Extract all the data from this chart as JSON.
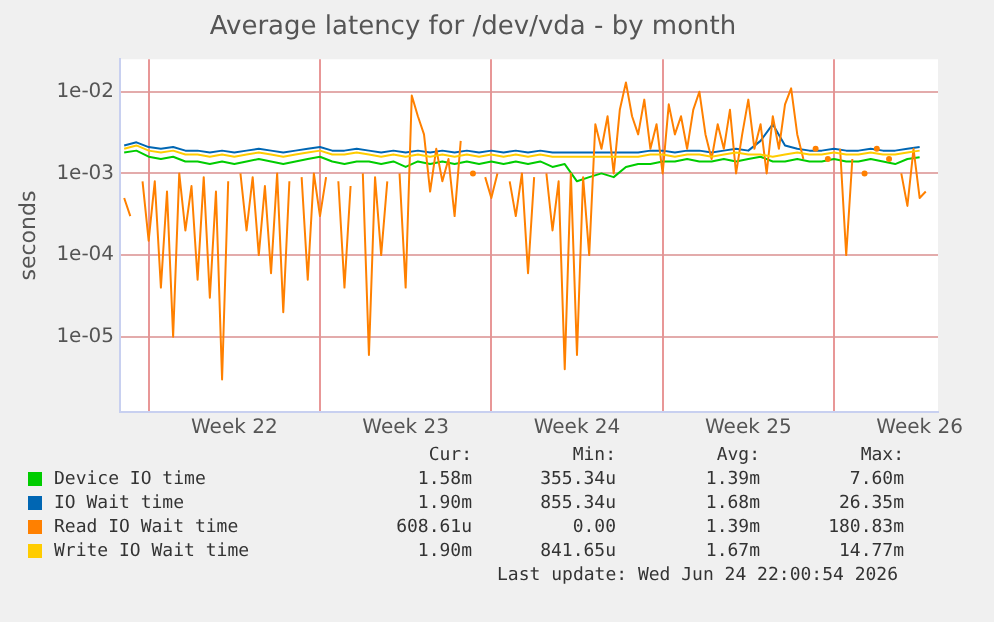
{
  "chart_data": {
    "type": "line",
    "title": "Average latency for /dev/vda - by month",
    "ylabel": "seconds",
    "log": "y",
    "grid": true,
    "legend": "bottom",
    "marker": "none",
    "line_style": "solid",
    "ylim": [
      1.2e-06,
      0.025
    ],
    "yticks": [
      {
        "value": 1e-05,
        "label": "1e-05"
      },
      {
        "value": 0.0001,
        "label": "1e-04"
      },
      {
        "value": 0.001,
        "label": "1e-03"
      },
      {
        "value": 0.01,
        "label": "1e-02"
      }
    ],
    "xlim": [
      "2026-05-22T20:00",
      "2026-06-25T06:00"
    ],
    "xticks": [
      {
        "value": "2026-05-24T00:00",
        "label": null
      },
      {
        "value": "2026-05-27T12:00",
        "label": "Week 22"
      },
      {
        "value": "2026-05-31T00:00",
        "label": null
      },
      {
        "value": "2026-06-03T12:00",
        "label": "Week 23"
      },
      {
        "value": "2026-06-07T00:00",
        "label": null
      },
      {
        "value": "2026-06-10T12:00",
        "label": "Week 24"
      },
      {
        "value": "2026-06-14T00:00",
        "label": null
      },
      {
        "value": "2026-06-17T12:00",
        "label": "Week 25"
      },
      {
        "value": "2026-06-21T00:00",
        "label": null
      },
      {
        "value": "2026-06-24T12:00",
        "label": "Week 26"
      }
    ],
    "x": [
      "2026-05-23T00:00",
      "2026-05-23T12:00",
      "2026-05-24T00:00",
      "2026-05-24T12:00",
      "2026-05-25T00:00",
      "2026-05-25T12:00",
      "2026-05-26T00:00",
      "2026-05-26T12:00",
      "2026-05-27T00:00",
      "2026-05-27T12:00",
      "2026-05-28T00:00",
      "2026-05-28T12:00",
      "2026-05-29T00:00",
      "2026-05-29T12:00",
      "2026-05-30T00:00",
      "2026-05-30T12:00",
      "2026-05-31T00:00",
      "2026-05-31T12:00",
      "2026-06-01T00:00",
      "2026-06-01T12:00",
      "2026-06-02T00:00",
      "2026-06-02T12:00",
      "2026-06-03T00:00",
      "2026-06-03T12:00",
      "2026-06-04T00:00",
      "2026-06-04T12:00",
      "2026-06-05T00:00",
      "2026-06-05T12:00",
      "2026-06-06T00:00",
      "2026-06-06T12:00",
      "2026-06-07T00:00",
      "2026-06-07T12:00",
      "2026-06-08T00:00",
      "2026-06-08T12:00",
      "2026-06-09T00:00",
      "2026-06-09T12:00",
      "2026-06-10T00:00",
      "2026-06-10T12:00",
      "2026-06-11T00:00",
      "2026-06-11T12:00",
      "2026-06-12T00:00",
      "2026-06-12T12:00",
      "2026-06-13T00:00",
      "2026-06-13T12:00",
      "2026-06-14T00:00",
      "2026-06-14T12:00",
      "2026-06-15T00:00",
      "2026-06-15T12:00",
      "2026-06-16T00:00",
      "2026-06-16T12:00",
      "2026-06-17T00:00",
      "2026-06-17T12:00",
      "2026-06-18T00:00",
      "2026-06-18T12:00",
      "2026-06-19T00:00",
      "2026-06-19T12:00",
      "2026-06-20T00:00",
      "2026-06-20T12:00",
      "2026-06-21T00:00",
      "2026-06-21T12:00",
      "2026-06-22T00:00",
      "2026-06-22T12:00",
      "2026-06-23T00:00",
      "2026-06-23T12:00",
      "2026-06-24T00:00",
      "2026-06-24T12:00"
    ],
    "series": [
      {
        "name": "Device IO time",
        "color": "#00cc00",
        "values": [
          0.0018,
          0.0019,
          0.0016,
          0.0015,
          0.0016,
          0.0014,
          0.0014,
          0.0013,
          0.0014,
          0.0013,
          0.0014,
          0.0015,
          0.0014,
          0.0013,
          0.0014,
          0.0015,
          0.0016,
          0.0014,
          0.0013,
          0.0014,
          0.0014,
          0.0013,
          0.0014,
          0.0012,
          0.0014,
          0.0013,
          0.0014,
          0.0013,
          0.0014,
          0.0013,
          0.0014,
          0.0013,
          0.0014,
          0.0013,
          0.0014,
          0.0012,
          0.0013,
          0.0008,
          0.0009,
          0.001,
          0.0009,
          0.0012,
          0.0013,
          0.0013,
          0.0014,
          0.0014,
          0.0015,
          0.0014,
          0.0014,
          0.0015,
          0.0014,
          0.0015,
          0.0016,
          0.0014,
          0.0014,
          0.0015,
          0.0014,
          0.0014,
          0.0015,
          0.0014,
          0.0014,
          0.0015,
          0.0014,
          0.0013,
          0.0015,
          0.00158
        ]
      },
      {
        "name": "IO Wait time",
        "color": "#0066b3",
        "values": [
          0.0022,
          0.0024,
          0.0021,
          0.002,
          0.0021,
          0.0019,
          0.0019,
          0.0018,
          0.0019,
          0.0018,
          0.0019,
          0.002,
          0.0019,
          0.0018,
          0.0019,
          0.002,
          0.0021,
          0.0019,
          0.0019,
          0.002,
          0.0019,
          0.0018,
          0.0019,
          0.0018,
          0.0019,
          0.0018,
          0.0019,
          0.0018,
          0.0019,
          0.0018,
          0.0019,
          0.0018,
          0.0019,
          0.0018,
          0.0019,
          0.0018,
          0.0018,
          0.0018,
          0.0018,
          0.0018,
          0.0018,
          0.0018,
          0.0018,
          0.0019,
          0.0019,
          0.0018,
          0.0019,
          0.0019,
          0.0018,
          0.0019,
          0.002,
          0.0019,
          0.0025,
          0.004,
          0.0022,
          0.002,
          0.0019,
          0.0019,
          0.002,
          0.0019,
          0.0019,
          0.002,
          0.0019,
          0.0019,
          0.002,
          0.0021
        ]
      },
      {
        "name": "Read IO Wait time",
        "color": "#ff8000",
        "x": [
          "2026-05-23T00:00",
          "2026-05-23T06:00",
          "2026-05-23T12:00",
          "2026-05-23T18:00",
          "2026-05-24T00:00",
          "2026-05-24T06:00",
          "2026-05-24T12:00",
          "2026-05-24T18:00",
          "2026-05-25T00:00",
          "2026-05-25T06:00",
          "2026-05-25T12:00",
          "2026-05-25T18:00",
          "2026-05-26T00:00",
          "2026-05-26T06:00",
          "2026-05-26T12:00",
          "2026-05-26T18:00",
          "2026-05-27T00:00",
          "2026-05-27T06:00",
          "2026-05-27T12:00",
          "2026-05-27T18:00",
          "2026-05-28T00:00",
          "2026-05-28T06:00",
          "2026-05-28T12:00",
          "2026-05-28T18:00",
          "2026-05-29T00:00",
          "2026-05-29T06:00",
          "2026-05-29T12:00",
          "2026-05-29T18:00",
          "2026-05-30T00:00",
          "2026-05-30T06:00",
          "2026-05-30T12:00",
          "2026-05-30T18:00",
          "2026-05-31T00:00",
          "2026-05-31T06:00",
          "2026-05-31T12:00",
          "2026-05-31T18:00",
          "2026-06-01T00:00",
          "2026-06-01T06:00",
          "2026-06-01T12:00",
          "2026-06-01T18:00",
          "2026-06-02T00:00",
          "2026-06-02T06:00",
          "2026-06-02T12:00",
          "2026-06-02T18:00",
          "2026-06-03T00:00",
          "2026-06-03T06:00",
          "2026-06-03T12:00",
          "2026-06-03T18:00",
          "2026-06-04T00:00",
          "2026-06-04T06:00",
          "2026-06-04T12:00",
          "2026-06-04T18:00",
          "2026-06-05T00:00",
          "2026-06-05T06:00",
          "2026-06-05T12:00",
          "2026-06-05T18:00",
          "2026-06-06T00:00",
          "2026-06-06T06:00",
          "2026-06-06T12:00",
          "2026-06-06T18:00",
          "2026-06-07T00:00",
          "2026-06-07T06:00",
          "2026-06-07T12:00",
          "2026-06-07T18:00",
          "2026-06-08T00:00",
          "2026-06-08T06:00",
          "2026-06-08T12:00",
          "2026-06-08T18:00",
          "2026-06-09T00:00",
          "2026-06-09T06:00",
          "2026-06-09T12:00",
          "2026-06-09T18:00",
          "2026-06-10T00:00",
          "2026-06-10T06:00",
          "2026-06-10T12:00",
          "2026-06-10T18:00",
          "2026-06-11T00:00",
          "2026-06-11T06:00",
          "2026-06-11T12:00",
          "2026-06-11T18:00",
          "2026-06-12T00:00",
          "2026-06-12T06:00",
          "2026-06-12T12:00",
          "2026-06-12T18:00",
          "2026-06-13T00:00",
          "2026-06-13T06:00",
          "2026-06-13T12:00",
          "2026-06-13T18:00",
          "2026-06-14T00:00",
          "2026-06-14T06:00",
          "2026-06-14T12:00",
          "2026-06-14T18:00",
          "2026-06-15T00:00",
          "2026-06-15T06:00",
          "2026-06-15T12:00",
          "2026-06-15T18:00",
          "2026-06-16T00:00",
          "2026-06-16T06:00",
          "2026-06-16T12:00",
          "2026-06-16T18:00",
          "2026-06-17T00:00",
          "2026-06-17T06:00",
          "2026-06-17T12:00",
          "2026-06-17T18:00",
          "2026-06-18T00:00",
          "2026-06-18T06:00",
          "2026-06-18T12:00",
          "2026-06-18T18:00",
          "2026-06-19T00:00",
          "2026-06-19T06:00",
          "2026-06-19T12:00",
          "2026-06-19T18:00",
          "2026-06-20T00:00",
          "2026-06-20T06:00",
          "2026-06-20T12:00",
          "2026-06-20T18:00",
          "2026-06-21T00:00",
          "2026-06-21T06:00",
          "2026-06-21T12:00",
          "2026-06-21T18:00",
          "2026-06-22T00:00",
          "2026-06-22T06:00",
          "2026-06-22T12:00",
          "2026-06-22T18:00",
          "2026-06-23T00:00",
          "2026-06-23T06:00",
          "2026-06-23T12:00",
          "2026-06-23T18:00",
          "2026-06-24T00:00",
          "2026-06-24T06:00",
          "2026-06-24T12:00",
          "2026-06-24T18:00"
        ],
        "values": [
          0.0005,
          0.0003,
          null,
          0.0008,
          0.00015,
          0.0008,
          4e-05,
          0.0006,
          1e-05,
          0.001,
          0.0002,
          0.0007,
          5e-05,
          0.0009,
          3e-05,
          0.0006,
          3e-06,
          0.0008,
          null,
          0.001,
          0.0002,
          0.0009,
          0.0001,
          0.0007,
          6e-05,
          0.001,
          2e-05,
          0.0008,
          null,
          0.0009,
          5e-05,
          0.001,
          0.0003,
          0.0009,
          null,
          0.0008,
          4e-05,
          0.0007,
          null,
          0.001,
          6e-06,
          0.0009,
          0.0001,
          0.0008,
          null,
          0.001,
          4e-05,
          0.009,
          0.005,
          0.003,
          0.0006,
          0.002,
          0.0008,
          0.0015,
          0.0003,
          0.0025,
          null,
          0.001,
          null,
          0.0009,
          0.0005,
          0.001,
          null,
          0.0008,
          0.0003,
          0.001,
          6e-05,
          0.0009,
          null,
          0.001,
          0.0002,
          0.0008,
          4e-06,
          0.001,
          6e-06,
          0.0009,
          0.0001,
          0.004,
          0.002,
          0.005,
          0.001,
          0.006,
          0.013,
          0.005,
          0.003,
          0.008,
          0.002,
          0.004,
          0.001,
          0.007,
          0.003,
          0.005,
          0.002,
          0.006,
          0.01,
          0.003,
          0.0015,
          0.004,
          0.002,
          0.006,
          0.001,
          0.003,
          0.008,
          0.002,
          0.004,
          0.001,
          0.005,
          0.002,
          0.007,
          0.011,
          0.003,
          0.0015,
          null,
          0.002,
          null,
          0.0015,
          null,
          0.002,
          0.0001,
          0.0015,
          null,
          0.001,
          null,
          0.002,
          null,
          0.0015,
          null,
          0.001,
          0.0004,
          0.002,
          0.0005,
          0.0006
        ]
      },
      {
        "name": "Write IO Wait time",
        "color": "#ffcc00",
        "values": [
          0.002,
          0.0022,
          0.0019,
          0.0018,
          0.0019,
          0.0017,
          0.0017,
          0.0016,
          0.0017,
          0.0016,
          0.0017,
          0.0018,
          0.0017,
          0.0016,
          0.0017,
          0.0018,
          0.0019,
          0.0017,
          0.0017,
          0.0018,
          0.0017,
          0.0016,
          0.0017,
          0.0016,
          0.0017,
          0.0016,
          0.0017,
          0.0016,
          0.0017,
          0.0016,
          0.0017,
          0.0016,
          0.0017,
          0.0016,
          0.0017,
          0.0016,
          0.0016,
          0.0016,
          0.0016,
          0.0016,
          0.0016,
          0.0016,
          0.0016,
          0.0017,
          0.0017,
          0.0016,
          0.0017,
          0.0017,
          0.0016,
          0.0017,
          0.0018,
          0.0017,
          0.0017,
          0.0016,
          0.0017,
          0.0018,
          0.0017,
          0.0017,
          0.0018,
          0.0017,
          0.0017,
          0.0018,
          0.0017,
          0.0017,
          0.0018,
          0.0019
        ]
      }
    ],
    "annotations": [
      "Cur:",
      "Min:",
      "Avg:",
      "Max:",
      "1.58m",
      "355.34u",
      "1.39m",
      "7.60m",
      "1.90m",
      "855.34u",
      "1.68m",
      "26.35m",
      "608.61u",
      "0.00",
      "1.39m",
      "180.83m",
      "1.90m",
      "841.65u",
      "1.67m",
      "14.77m",
      "Last update: Wed Jun 24 22:00:54 2026"
    ]
  }
}
